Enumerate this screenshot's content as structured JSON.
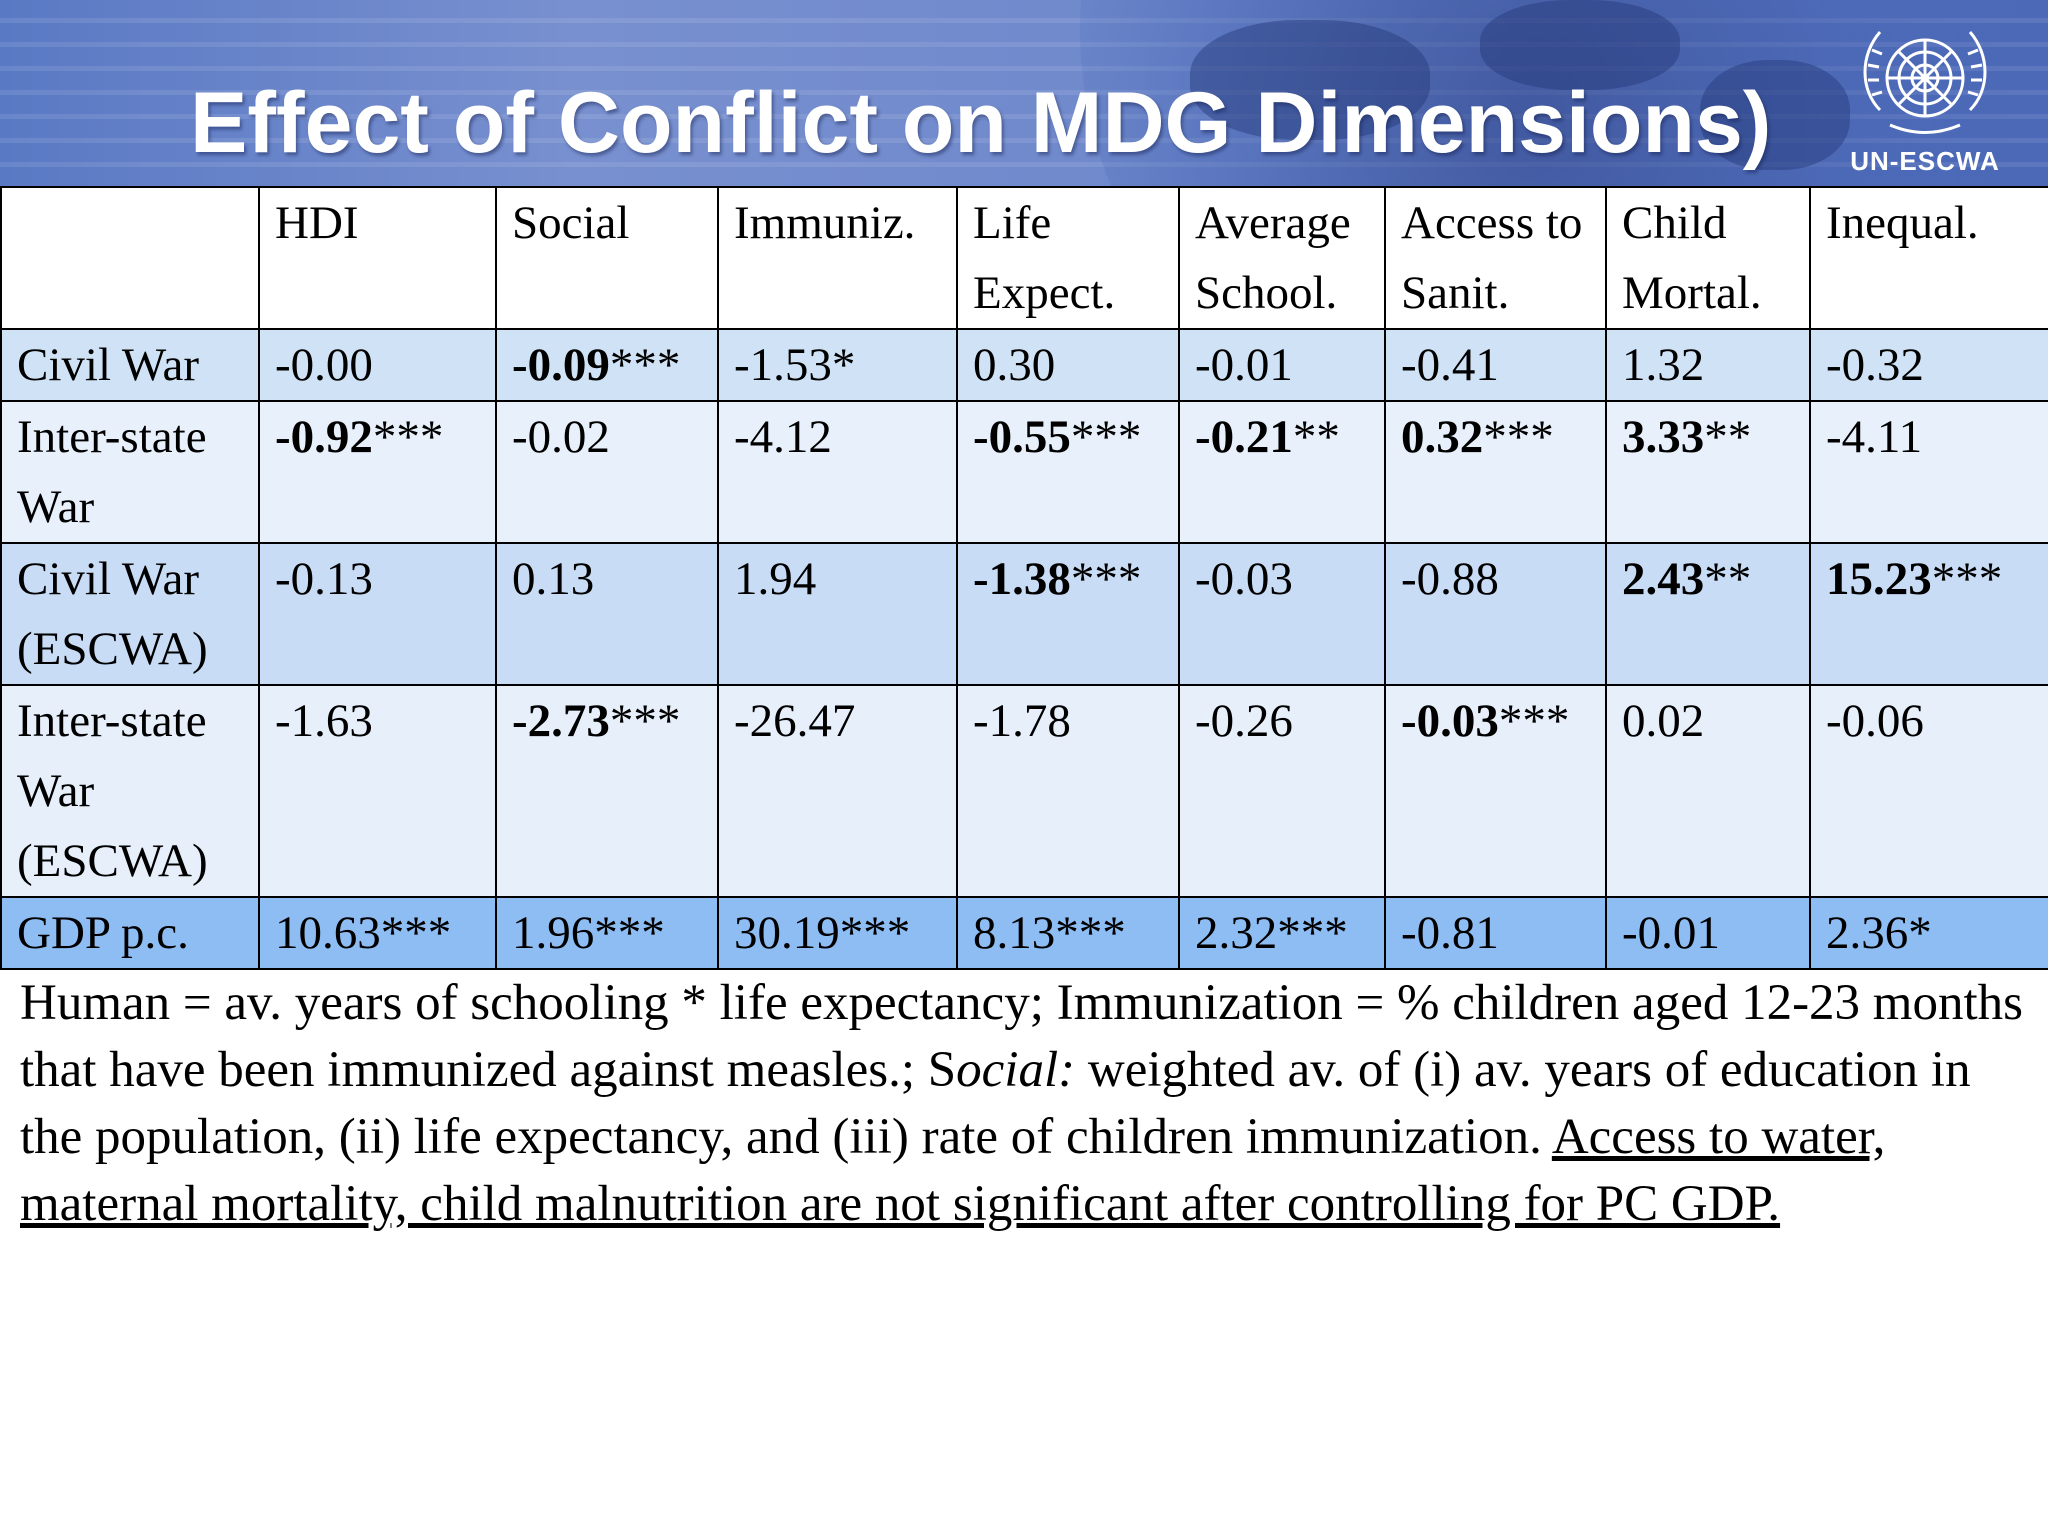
{
  "slide": {
    "title": "Effect of Conflict on MDG Dimensions)",
    "logo_text": "UN-ESCWA"
  },
  "table": {
    "columns": [
      "",
      "HDI",
      "Social",
      "Immuniz.",
      "Life Expect.",
      "Average School.",
      "Access to Sanit.",
      "Child Mortal.",
      "Inequal."
    ],
    "rows": [
      {
        "label": "Civil War",
        "cells": [
          {
            "v": "-0.00",
            "bold": false
          },
          {
            "v": "-0.09",
            "stars": "***",
            "bold": true
          },
          {
            "v": "-1.53*",
            "bold": false
          },
          {
            "v": "0.30",
            "bold": false
          },
          {
            "v": "-0.01",
            "bold": false
          },
          {
            "v": "-0.41",
            "bold": false
          },
          {
            "v": "1.32",
            "bold": false
          },
          {
            "v": "-0.32",
            "bold": false
          }
        ]
      },
      {
        "label": "Inter-state War",
        "cells": [
          {
            "v": "-0.92",
            "stars": "***",
            "bold": true
          },
          {
            "v": "-0.02",
            "bold": false
          },
          {
            "v": "-4.12",
            "bold": false
          },
          {
            "v": "-0.55",
            "stars": "***",
            "bold": true
          },
          {
            "v": "-0.21",
            "stars": "**",
            "bold": true
          },
          {
            "v": "0.32",
            "stars": "***",
            "bold": true
          },
          {
            "v": "3.33",
            "stars": "**",
            "bold": true
          },
          {
            "v": "-4.11",
            "bold": false
          }
        ]
      },
      {
        "label": "Civil War (ESCWA)",
        "cells": [
          {
            "v": "-0.13",
            "bold": false
          },
          {
            "v": "0.13",
            "bold": false
          },
          {
            "v": "1.94",
            "bold": false
          },
          {
            "v": "-1.38",
            "stars": "***",
            "bold": true
          },
          {
            "v": "-0.03",
            "bold": false
          },
          {
            "v": "-0.88",
            "bold": false
          },
          {
            "v": "2.43",
            "stars": "**",
            "bold": true
          },
          {
            "v": "15.23",
            "stars": "***",
            "bold": true
          }
        ]
      },
      {
        "label": "Inter-state War (ESCWA)",
        "cells": [
          {
            "v": "-1.63",
            "bold": false
          },
          {
            "v": "-2.73",
            "stars": "***",
            "bold": true
          },
          {
            "v": "-26.47",
            "bold": false
          },
          {
            "v": "-1.78",
            "bold": false
          },
          {
            "v": "-0.26",
            "bold": false
          },
          {
            "v": "-0.03",
            "stars": "***",
            "bold": true
          },
          {
            "v": "0.02",
            "bold": false
          },
          {
            "v": "-0.06",
            "bold": false
          }
        ]
      },
      {
        "label": "GDP p.c.",
        "cells": [
          {
            "v": "10.63***",
            "bold": false
          },
          {
            "v": "1.96***",
            "bold": false
          },
          {
            "v": "30.19***",
            "bold": false
          },
          {
            "v": "8.13***",
            "bold": false
          },
          {
            "v": "2.32***",
            "bold": false
          },
          {
            "v": "-0.81",
            "bold": false
          },
          {
            "v": "-0.01",
            "bold": false
          },
          {
            "v": "2.36*",
            "bold": false
          }
        ]
      }
    ]
  },
  "footnote": {
    "part1": "Human = av. years of schooling * life expectancy; Immunization = % children aged 12-23 months that have been immunized against measles.; ",
    "part2": "S",
    "part3": "ocial:",
    "part4": " weighted av. of (i) av. years of education in the population, (ii) life expectancy, and (iii) rate of children immunization. ",
    "part5": "Access to water, maternal mortality, child malnutrition are not significant after controlling for PC GDP."
  }
}
